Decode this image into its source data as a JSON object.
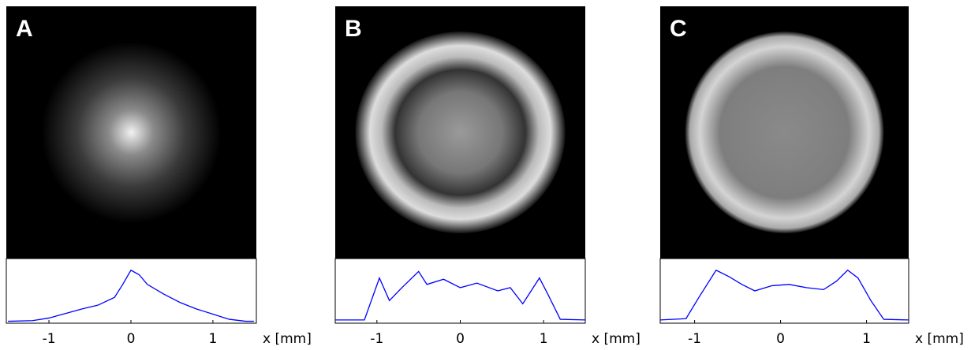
{
  "chart_data": [
    {
      "type": "line",
      "label": "A",
      "xlabel": "x [mm]",
      "color": "#0000ff",
      "xlim": [
        -1.52,
        1.53
      ],
      "ylim": [
        0,
        1
      ],
      "xticks": [
        -1,
        0,
        1
      ],
      "x": [
        -1.5,
        -1.2,
        -1.0,
        -0.8,
        -0.6,
        -0.4,
        -0.2,
        -0.1,
        0,
        0.1,
        0.2,
        0.4,
        0.6,
        0.8,
        1.0,
        1.2,
        1.4,
        1.5
      ],
      "values": [
        0.03,
        0.04,
        0.08,
        0.15,
        0.22,
        0.28,
        0.4,
        0.6,
        0.82,
        0.75,
        0.6,
        0.45,
        0.32,
        0.22,
        0.14,
        0.06,
        0.03,
        0.03
      ]
    },
    {
      "type": "line",
      "label": "B",
      "xlabel": "x [mm]",
      "color": "#0000ff",
      "xlim": [
        -1.5,
        1.5
      ],
      "ylim": [
        0,
        1
      ],
      "xticks": [
        -1,
        0,
        1
      ],
      "x": [
        -1.5,
        -1.15,
        -0.97,
        -0.85,
        -0.7,
        -0.5,
        -0.4,
        -0.2,
        0,
        0.2,
        0.45,
        0.6,
        0.75,
        0.95,
        1.05,
        1.2,
        1.5
      ],
      "values": [
        0.05,
        0.05,
        0.7,
        0.35,
        0.55,
        0.8,
        0.6,
        0.68,
        0.55,
        0.62,
        0.5,
        0.55,
        0.3,
        0.7,
        0.45,
        0.06,
        0.05
      ]
    },
    {
      "type": "line",
      "label": "C",
      "xlabel": "x [mm]",
      "color": "#0000ff",
      "xlim": [
        -1.4,
        1.49
      ],
      "ylim": [
        0,
        1
      ],
      "xticks": [
        -1,
        0,
        1
      ],
      "x": [
        -1.4,
        -1.1,
        -0.95,
        -0.75,
        -0.6,
        -0.45,
        -0.3,
        -0.1,
        0.1,
        0.3,
        0.5,
        0.65,
        0.78,
        0.9,
        1.05,
        1.2,
        1.49
      ],
      "values": [
        0.05,
        0.07,
        0.4,
        0.82,
        0.72,
        0.6,
        0.5,
        0.58,
        0.6,
        0.55,
        0.52,
        0.65,
        0.82,
        0.7,
        0.35,
        0.06,
        0.05
      ]
    }
  ]
}
